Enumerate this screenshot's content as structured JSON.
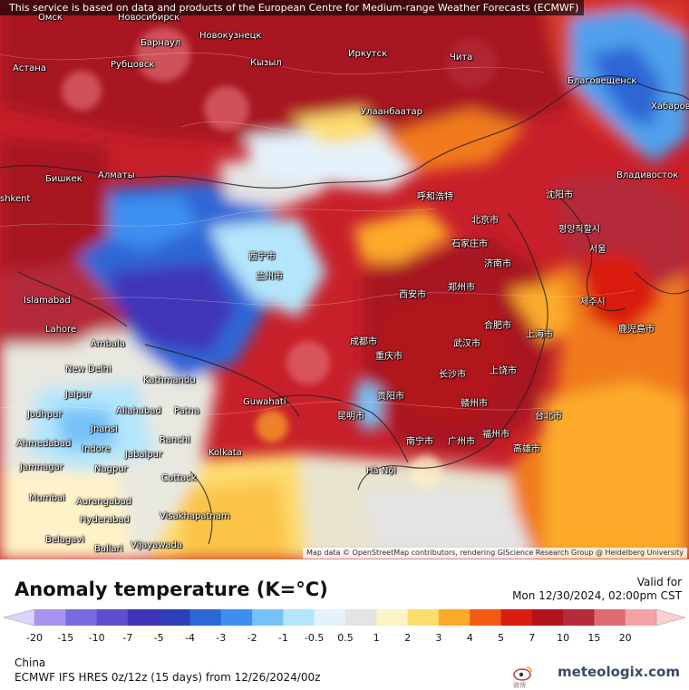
{
  "map": {
    "notice": "This service is based on data and products of the European Centre for Medium-range Weather Forecasts (ECMWF)",
    "attribution": "Map data © OpenStreetMap contributors, rendering GIScience Research Group @ Heidelberg University",
    "cities": [
      {
        "name": "Омск"
      },
      {
        "name": "Новосибирск"
      },
      {
        "name": "Барнаул"
      },
      {
        "name": "Новокузнецк"
      },
      {
        "name": "Иркутск"
      },
      {
        "name": "Астана"
      },
      {
        "name": "Рубцовск"
      },
      {
        "name": "Кызыл"
      },
      {
        "name": "Чита"
      },
      {
        "name": "Улаанбаатар"
      },
      {
        "name": "Благовещенск"
      },
      {
        "name": "Хабаров"
      },
      {
        "name": "Бишкек"
      },
      {
        "name": "Алматы"
      },
      {
        "name": "Владивосток"
      },
      {
        "name": "shkent"
      },
      {
        "name": "Islamabad"
      },
      {
        "name": "Lahore"
      },
      {
        "name": "Ambala"
      },
      {
        "name": "New Delhi"
      },
      {
        "name": "Kathmandu"
      },
      {
        "name": "Jaipur"
      },
      {
        "name": "Allahabad"
      },
      {
        "name": "Patna"
      },
      {
        "name": "Guwahati"
      },
      {
        "name": "Jodhpur"
      },
      {
        "name": "Jhansi"
      },
      {
        "name": "Ranchi"
      },
      {
        "name": "Ahmedabad"
      },
      {
        "name": "Indore"
      },
      {
        "name": "Jabalpur"
      },
      {
        "name": "Kolkata"
      },
      {
        "name": "Jamnagar"
      },
      {
        "name": "Nagpur"
      },
      {
        "name": "Cuttack"
      },
      {
        "name": "Mumbai"
      },
      {
        "name": "Aurangabad"
      },
      {
        "name": "Hyderabad"
      },
      {
        "name": "Visakhapatnam"
      },
      {
        "name": "Belagavi"
      },
      {
        "name": "Ballari"
      },
      {
        "name": "Vijayawada"
      },
      {
        "name": "Hà Nội"
      },
      {
        "name": "呼和浩特"
      },
      {
        "name": "北京市"
      },
      {
        "name": "沈阳市"
      },
      {
        "name": "石家庄市"
      },
      {
        "name": "济南市"
      },
      {
        "name": "西宁市"
      },
      {
        "name": "兰州市"
      },
      {
        "name": "郑州市"
      },
      {
        "name": "西安市"
      },
      {
        "name": "合肥市"
      },
      {
        "name": "武汉市"
      },
      {
        "name": "成都市"
      },
      {
        "name": "重庆市"
      },
      {
        "name": "上海市"
      },
      {
        "name": "长沙市"
      },
      {
        "name": "上饶市"
      },
      {
        "name": "贵阳市"
      },
      {
        "name": "昆明市"
      },
      {
        "name": "赣州市"
      },
      {
        "name": "台北市"
      },
      {
        "name": "广州市"
      },
      {
        "name": "福州市"
      },
      {
        "name": "高雄市"
      },
      {
        "name": "南宁市"
      },
      {
        "name": "서울"
      },
      {
        "name": "평양직할시"
      },
      {
        "name": "제주시"
      },
      {
        "name": "鹿児島市"
      }
    ]
  },
  "legend": {
    "title": "Anomaly temperature (K=°C)",
    "valid_label": "Valid for",
    "valid_time": "Mon 12/30/2024, 02:00pm CST",
    "scale": [
      {
        "label": "-20",
        "color": "#a794f0"
      },
      {
        "label": "-15",
        "color": "#7a6ae0"
      },
      {
        "label": "-10",
        "color": "#5c4ed0"
      },
      {
        "label": "-7",
        "color": "#3f34b8"
      },
      {
        "label": "-5",
        "color": "#2a3fb8"
      },
      {
        "label": "-4",
        "color": "#2d66d6"
      },
      {
        "label": "-3",
        "color": "#3c8ff0"
      },
      {
        "label": "-2",
        "color": "#76c2f8"
      },
      {
        "label": "-1",
        "color": "#b4e6fb"
      },
      {
        "label": "-0.5",
        "color": "#e4f3fb"
      },
      {
        "label": "0.5",
        "color": "#e4e4e4"
      },
      {
        "label": "1",
        "color": "#fef2c8"
      },
      {
        "label": "2",
        "color": "#fddc6e"
      },
      {
        "label": "3",
        "color": "#fbaa2a"
      },
      {
        "label": "4",
        "color": "#f25b14"
      },
      {
        "label": "5",
        "color": "#d91e10"
      },
      {
        "label": "7",
        "color": "#b1121c"
      },
      {
        "label": "10",
        "color": "#b42b3a"
      },
      {
        "label": "15",
        "color": "#e06a72"
      },
      {
        "label": "20",
        "color": "#f3a2a6"
      }
    ],
    "end_colors": {
      "low": "#dcd4fb",
      "high": "#fbd0d0"
    },
    "region": "China",
    "model": "ECMWF IFS HRES 0z/12z (15 days) from 12/26/2024/00z",
    "brand": "meteologix.com",
    "brand_sub": "微博"
  }
}
